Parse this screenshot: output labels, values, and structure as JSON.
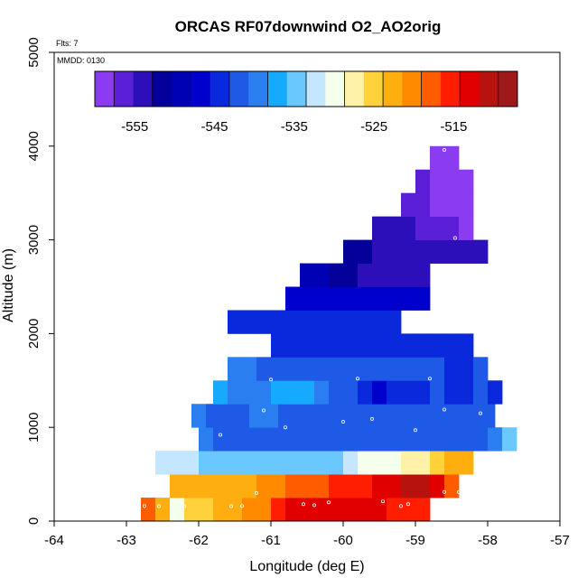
{
  "chart_data": {
    "type": "heatmap",
    "title": "ORCAS RF07downwind O2_AO2orig",
    "annotations": [
      "Flts: 7",
      "MMDD: 0130"
    ],
    "xlabel": "Longitude (deg E)",
    "ylabel": "Altitude (m)",
    "xlim": [
      -64,
      -57
    ],
    "ylim": [
      0,
      5000
    ],
    "x_ticks": [
      -64,
      -63,
      -62,
      -61,
      -60,
      -59,
      -58,
      -57
    ],
    "y_ticks": [
      0,
      1000,
      2000,
      3000,
      4000,
      5000
    ],
    "colorbar": {
      "range": [
        -560,
        -507
      ],
      "tick_values": [
        -555,
        -545,
        -535,
        -525,
        -515
      ],
      "tick_labels": [
        "-555",
        "-545",
        "-535",
        "-525",
        "-515"
      ],
      "colors": [
        "#8b3cf0",
        "#5a1fd6",
        "#2c0fb8",
        "#05009a",
        "#0000b4",
        "#0000cc",
        "#0a28dc",
        "#1e5ae6",
        "#2a7ef0",
        "#16aaff",
        "#6bc8ff",
        "#c4e6ff",
        "#f4ffec",
        "#fff2a8",
        "#ffd23c",
        "#ffae10",
        "#ff8a00",
        "#ff5c00",
        "#ff1e00",
        "#e10000",
        "#b8120e",
        "#9e1a1a"
      ]
    },
    "bin_size": {
      "lon": 0.2,
      "alt": 250
    },
    "rows": [
      {
        "alt": 0,
        "lon_start": -62.8,
        "values": [
          -518,
          -522,
          -529,
          -526,
          -524,
          -523,
          -522,
          -521,
          -521,
          -516,
          -514,
          -514,
          -513,
          -513,
          -513,
          -514,
          -514,
          -515,
          -515,
          -515
        ]
      },
      {
        "alt": 250,
        "lon_start": -62.4,
        "values": [
          -523,
          -522,
          -523,
          -522,
          -523,
          -522,
          -521,
          -520,
          -519,
          -518,
          -517,
          -515,
          -515,
          -515,
          -513,
          -512,
          -511,
          -511,
          -513,
          -517
        ]
      },
      {
        "alt": 500,
        "lon_start": -62.6,
        "values": [
          -533,
          -533,
          -533,
          -534,
          -534,
          -534,
          -535,
          -535,
          -535,
          -535,
          -535,
          -534,
          -534,
          -532,
          -531,
          -530,
          -529,
          -528,
          -527,
          -526,
          -523,
          -523
        ]
      },
      {
        "alt": 750,
        "lon_start": -62.0,
        "values": [
          -540,
          -541,
          -542,
          -541,
          -542,
          -543,
          -543,
          -542,
          -543,
          -543,
          -542,
          -542,
          -543,
          -543,
          -542,
          -543,
          -542,
          -543,
          -542,
          -543,
          -539,
          -535
        ]
      },
      {
        "alt": 1000,
        "lon_start": -62.1,
        "values": [
          -539,
          -541,
          -542,
          -541,
          -540,
          -540,
          -541,
          -543,
          -542,
          -543,
          -542,
          -543,
          -542,
          -543,
          -542,
          -543,
          -542,
          -542,
          -543,
          -542,
          -543
        ]
      },
      {
        "alt": 1250,
        "lon_start": -61.8,
        "values": [
          -538,
          -539,
          -539,
          -540,
          -538,
          -537,
          -538,
          -540,
          -542,
          -543,
          -545,
          -546,
          -545,
          -545,
          -544,
          -543,
          -544,
          -544,
          -543,
          -544
        ]
      },
      {
        "alt": 1500,
        "lon_start": -61.6,
        "values": [
          -539,
          -540,
          -541,
          -541,
          -541,
          -542,
          -542,
          -542,
          -543,
          -543,
          -543,
          -543,
          -543,
          -543,
          -543,
          -544,
          -544,
          -543
        ]
      },
      {
        "alt": 1750,
        "lon_start": -61.0,
        "values": [
          -545,
          -545,
          -545,
          -545,
          -545,
          -545,
          -545,
          -545,
          -545,
          -545,
          -545,
          -545,
          -545,
          -545
        ]
      },
      {
        "alt": 2000,
        "lon_start": -61.6,
        "values": [
          -545,
          -545,
          -545,
          -545,
          -545,
          -545,
          -545,
          -545,
          -545,
          -545,
          -545,
          -545
        ]
      },
      {
        "alt": 2250,
        "lon_start": -60.8,
        "values": [
          -546,
          -546,
          -547,
          -547,
          -547,
          -547,
          -547,
          -547,
          -547,
          -547
        ]
      },
      {
        "alt": 2500,
        "lon_start": -60.6,
        "values": [
          -548,
          -549,
          -551,
          -552,
          -553,
          -553,
          -553,
          -553,
          -553
        ]
      },
      {
        "alt": 2750,
        "lon_start": -60.0,
        "values": [
          -552,
          -552,
          -553,
          -553,
          -553,
          -553,
          -553,
          -554,
          -554,
          -553
        ]
      },
      {
        "alt": 3000,
        "lon_start": -59.6,
        "values": [
          -553,
          -554,
          -555,
          -556,
          -557,
          -557,
          -558
        ]
      },
      {
        "alt": 3250,
        "lon_start": -59.2,
        "values": [
          -556,
          -557,
          -558,
          -559,
          -560
        ]
      },
      {
        "alt": 3500,
        "lon_start": -59.0,
        "values": [
          -557,
          -558,
          -559,
          -560
        ]
      },
      {
        "alt": 3750,
        "lon_start": -58.8,
        "values": [
          -558,
          -560
        ]
      }
    ],
    "sample_points": [
      {
        "lon": -62.75,
        "alt": 160
      },
      {
        "lon": -62.55,
        "alt": 160
      },
      {
        "lon": -62.2,
        "alt": 160
      },
      {
        "lon": -61.55,
        "alt": 160
      },
      {
        "lon": -61.4,
        "alt": 160
      },
      {
        "lon": -61.2,
        "alt": 300
      },
      {
        "lon": -60.55,
        "alt": 180
      },
      {
        "lon": -60.4,
        "alt": 170
      },
      {
        "lon": -60.2,
        "alt": 200
      },
      {
        "lon": -59.45,
        "alt": 210
      },
      {
        "lon": -59.2,
        "alt": 160
      },
      {
        "lon": -59.1,
        "alt": 180
      },
      {
        "lon": -58.6,
        "alt": 310
      },
      {
        "lon": -58.4,
        "alt": 310
      },
      {
        "lon": -58.2,
        "alt": 320
      },
      {
        "lon": -62.2,
        "alt": 920
      },
      {
        "lon": -61.7,
        "alt": 920
      },
      {
        "lon": -61.1,
        "alt": 1180
      },
      {
        "lon": -60.8,
        "alt": 1000
      },
      {
        "lon": -60.0,
        "alt": 1060
      },
      {
        "lon": -59.6,
        "alt": 1090
      },
      {
        "lon": -59.0,
        "alt": 970
      },
      {
        "lon": -58.6,
        "alt": 1190
      },
      {
        "lon": -58.1,
        "alt": 1150
      },
      {
        "lon": -61.9,
        "alt": 1520
      },
      {
        "lon": -61.75,
        "alt": 1520
      },
      {
        "lon": -61.0,
        "alt": 1510
      },
      {
        "lon": -59.8,
        "alt": 1520
      },
      {
        "lon": -58.8,
        "alt": 1520
      },
      {
        "lon": -58.2,
        "alt": 2080
      },
      {
        "lon": -58.45,
        "alt": 3020
      },
      {
        "lon": -58.6,
        "alt": 3960
      }
    ]
  }
}
